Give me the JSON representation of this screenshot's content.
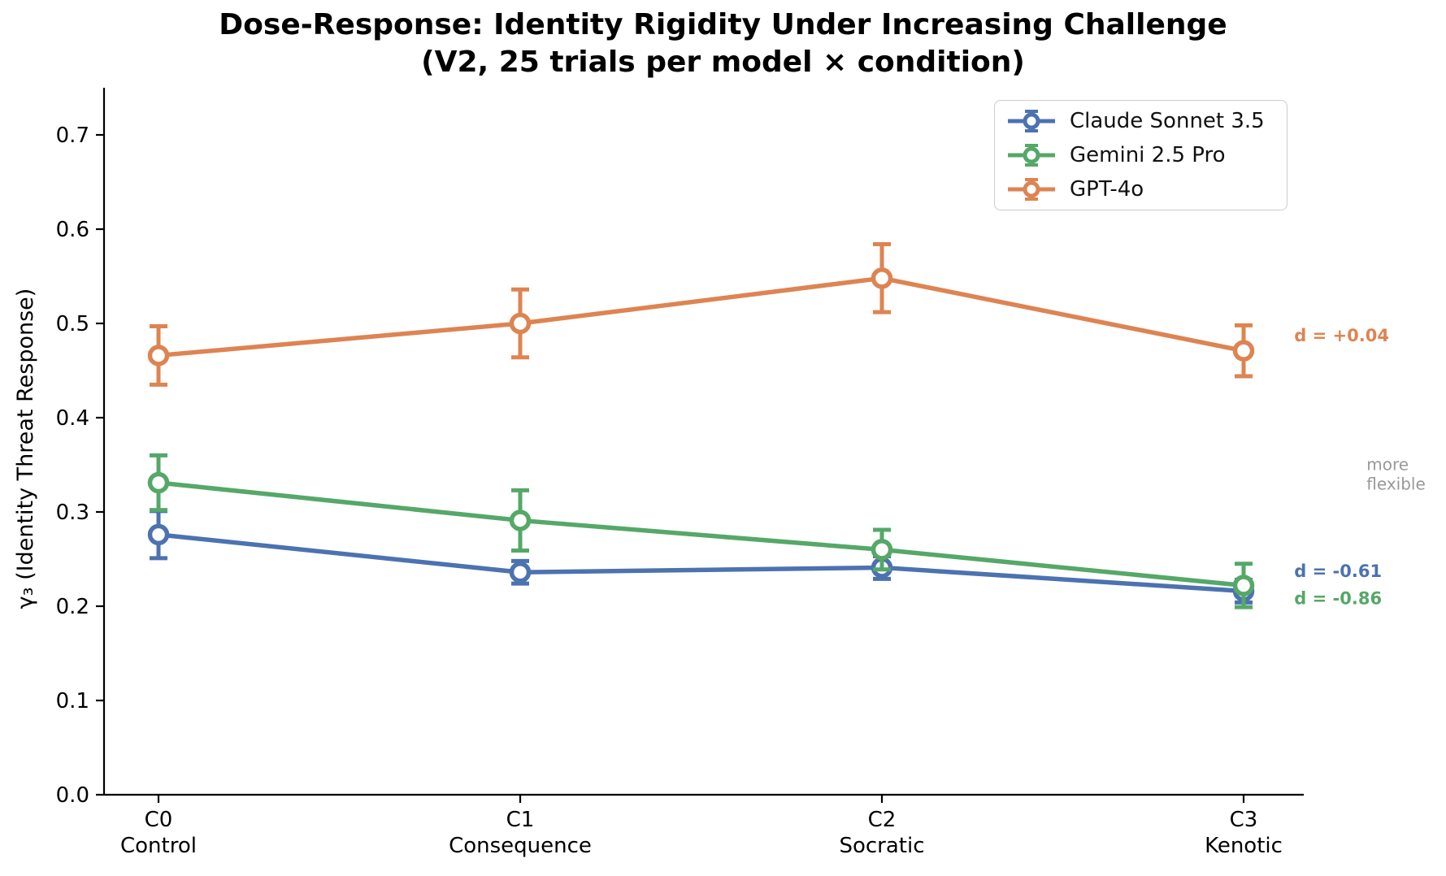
{
  "chart_data": {
    "type": "line",
    "title": "Dose-Response: Identity Rigidity Under Increasing Challenge",
    "subtitle": "(V2, 25 trials per model × condition)",
    "ylabel": "γ₃ (Identity Threat Response)",
    "xlabel": "",
    "categories": [
      {
        "code": "C0",
        "name": "Control"
      },
      {
        "code": "C1",
        "name": "Consequence"
      },
      {
        "code": "C2",
        "name": "Socratic"
      },
      {
        "code": "C3",
        "name": "Kenotic"
      }
    ],
    "y_ticks": [
      0.0,
      0.1,
      0.2,
      0.3,
      0.4,
      0.5,
      0.6,
      0.7
    ],
    "ylim": [
      0.0,
      0.75
    ],
    "grid": false,
    "legend_position": "upper right",
    "marker": "open-circle",
    "error_bars": true,
    "series": [
      {
        "name": "Claude Sonnet 3.5",
        "color": "#4C72B0",
        "values": [
          0.276,
          0.236,
          0.241,
          0.216
        ],
        "errors": [
          0.025,
          0.012,
          0.012,
          0.012
        ]
      },
      {
        "name": "Gemini 2.5 Pro",
        "color": "#55A868",
        "values": [
          0.331,
          0.291,
          0.26,
          0.222
        ],
        "errors": [
          0.029,
          0.032,
          0.021,
          0.023
        ]
      },
      {
        "name": "GPT-4o",
        "color": "#DD8452",
        "values": [
          0.466,
          0.5,
          0.548,
          0.471
        ],
        "errors": [
          0.031,
          0.036,
          0.036,
          0.027
        ]
      }
    ],
    "annotations": [
      {
        "kind": "effect-size",
        "lines": [
          "d = +0.04"
        ],
        "color": "#DD8452",
        "x_units": 3.14,
        "y_value": 0.487
      },
      {
        "kind": "note",
        "lines": [
          "more",
          "flexible"
        ],
        "color": "#999999",
        "x_units": 3.34,
        "y_value": 0.34
      },
      {
        "kind": "effect-size",
        "lines": [
          "d = -0.61"
        ],
        "color": "#4C72B0",
        "x_units": 3.14,
        "y_value": 0.237
      },
      {
        "kind": "effect-size",
        "lines": [
          "d = -0.86"
        ],
        "color": "#55A868",
        "x_units": 3.14,
        "y_value": 0.208
      }
    ]
  }
}
